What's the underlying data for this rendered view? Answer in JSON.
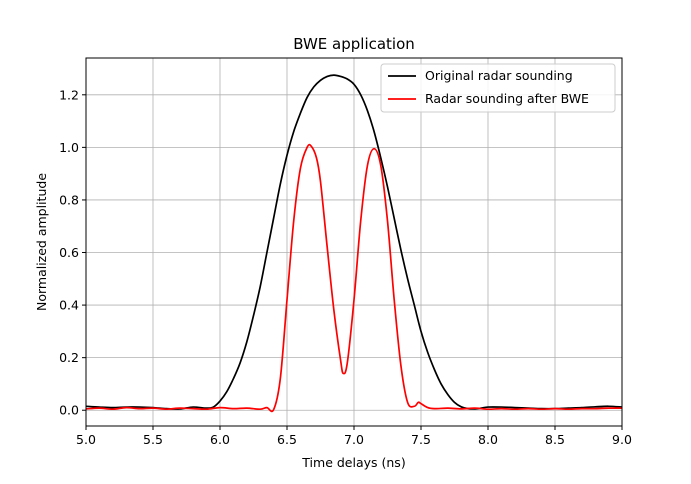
{
  "chart_data": {
    "type": "line",
    "title": "BWE application",
    "xlabel": "Time delays (ns)",
    "ylabel": "Normalized amplitude",
    "xlim": [
      5.0,
      9.0
    ],
    "ylim": [
      -0.06,
      1.34
    ],
    "x_ticks": [
      5.0,
      5.5,
      6.0,
      6.5,
      7.0,
      7.5,
      8.0,
      8.5,
      9.0
    ],
    "x_tick_labels": [
      "5.0",
      "5.5",
      "6.0",
      "6.5",
      "7.0",
      "7.5",
      "8.0",
      "8.5",
      "9.0"
    ],
    "y_ticks": [
      0.0,
      0.2,
      0.4,
      0.6,
      0.8,
      1.0,
      1.2
    ],
    "y_tick_labels": [
      "0.0",
      "0.2",
      "0.4",
      "0.6",
      "0.8",
      "1.0",
      "1.2"
    ],
    "grid": true,
    "legend_position": "top-right",
    "series": [
      {
        "name": "Original radar sounding",
        "color": "#000000",
        "x": [
          5.0,
          5.1,
          5.2,
          5.3,
          5.4,
          5.5,
          5.6,
          5.7,
          5.8,
          5.9,
          5.95,
          6.0,
          6.05,
          6.1,
          6.15,
          6.2,
          6.25,
          6.3,
          6.35,
          6.4,
          6.45,
          6.5,
          6.55,
          6.6,
          6.65,
          6.7,
          6.75,
          6.8,
          6.85,
          6.9,
          6.95,
          7.0,
          7.05,
          7.1,
          7.15,
          7.2,
          7.25,
          7.3,
          7.35,
          7.4,
          7.45,
          7.5,
          7.55,
          7.6,
          7.65,
          7.7,
          7.75,
          7.8,
          7.85,
          7.9,
          7.95,
          8.0,
          8.1,
          8.2,
          8.3,
          8.4,
          8.5,
          8.6,
          8.7,
          8.8,
          8.9,
          9.0
        ],
        "y": [
          0.015,
          0.012,
          0.01,
          0.012,
          0.012,
          0.01,
          0.006,
          0.005,
          0.012,
          0.008,
          0.012,
          0.035,
          0.07,
          0.12,
          0.18,
          0.26,
          0.36,
          0.47,
          0.6,
          0.73,
          0.86,
          0.97,
          1.06,
          1.13,
          1.19,
          1.23,
          1.255,
          1.27,
          1.275,
          1.27,
          1.26,
          1.24,
          1.2,
          1.14,
          1.06,
          0.96,
          0.85,
          0.73,
          0.61,
          0.5,
          0.4,
          0.3,
          0.22,
          0.155,
          0.1,
          0.06,
          0.03,
          0.013,
          0.006,
          0.005,
          0.008,
          0.012,
          0.012,
          0.01,
          0.008,
          0.006,
          0.006,
          0.008,
          0.01,
          0.013,
          0.015,
          0.012
        ]
      },
      {
        "name": "Radar sounding after BWE",
        "color": "#ff0000",
        "x": [
          5.0,
          5.1,
          5.2,
          5.3,
          5.4,
          5.5,
          5.6,
          5.7,
          5.8,
          5.9,
          6.0,
          6.1,
          6.2,
          6.3,
          6.35,
          6.4,
          6.45,
          6.5,
          6.55,
          6.6,
          6.65,
          6.68,
          6.72,
          6.75,
          6.8,
          6.85,
          6.9,
          6.92,
          6.95,
          7.0,
          7.05,
          7.1,
          7.15,
          7.2,
          7.25,
          7.3,
          7.35,
          7.4,
          7.45,
          7.48,
          7.5,
          7.55,
          7.6,
          7.7,
          7.8,
          7.9,
          8.0,
          8.1,
          8.2,
          8.3,
          8.4,
          8.5,
          8.6,
          8.7,
          8.8,
          8.9,
          9.0
        ],
        "y": [
          0.005,
          0.008,
          0.004,
          0.01,
          0.006,
          0.008,
          0.004,
          0.008,
          0.006,
          0.004,
          0.01,
          0.006,
          0.008,
          0.004,
          0.01,
          0.002,
          0.12,
          0.42,
          0.72,
          0.92,
          1.0,
          1.005,
          0.96,
          0.87,
          0.62,
          0.38,
          0.19,
          0.14,
          0.18,
          0.42,
          0.72,
          0.93,
          0.995,
          0.93,
          0.72,
          0.42,
          0.17,
          0.03,
          0.015,
          0.03,
          0.025,
          0.01,
          0.006,
          0.008,
          0.005,
          0.008,
          0.004,
          0.006,
          0.004,
          0.006,
          0.004,
          0.006,
          0.004,
          0.006,
          0.006,
          0.008,
          0.008
        ]
      }
    ]
  }
}
